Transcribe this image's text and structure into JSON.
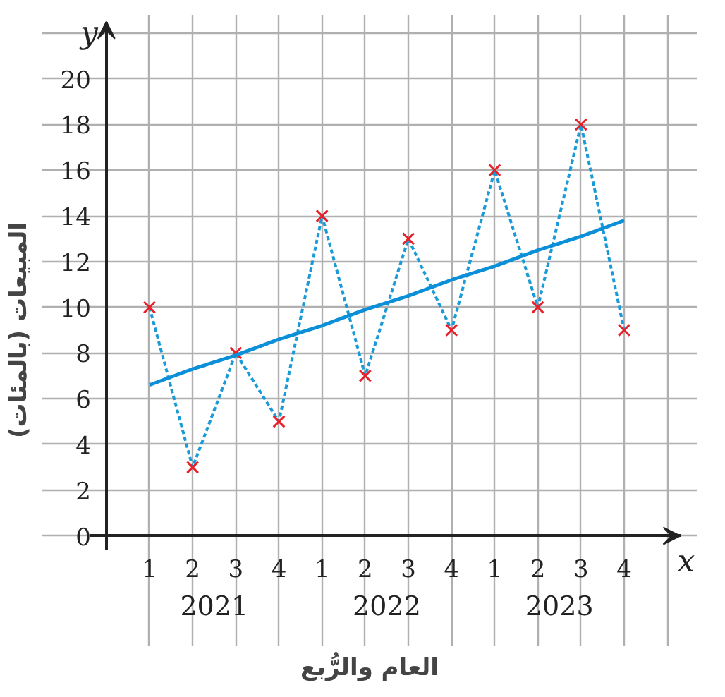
{
  "chart_data": {
    "type": "line",
    "xlabel": "العام والرُّبع",
    "ylabel": "المبيعات (بالمئات)",
    "categories": [
      "1",
      "2",
      "3",
      "4",
      "1",
      "2",
      "3",
      "4",
      "1",
      "2",
      "3",
      "4"
    ],
    "series": [
      {
        "color": "#1a9ad6",
        "line_style": "dotted",
        "marker": "none",
        "values": [
          10,
          3,
          8,
          5,
          14,
          7,
          13,
          9,
          16,
          10,
          18,
          9
        ]
      },
      {
        "type": "scatter",
        "color": "#e8202a",
        "marker": "cross",
        "values": [
          10,
          3,
          8,
          5,
          14,
          7,
          13,
          9,
          16,
          10,
          18,
          9
        ]
      },
      {
        "color": "#0a8fd8",
        "line_style": "solid",
        "marker": "none",
        "values": [
          6.6,
          7.3,
          7.9,
          8.6,
          9.2,
          9.9,
          10.5,
          11.2,
          11.8,
          12.5,
          13.1,
          13.8
        ]
      }
    ],
    "ylim": [
      0,
      22.5
    ],
    "yticks": [
      {
        "value": 0,
        "label": "0"
      },
      2,
      4,
      6,
      8,
      10,
      12,
      14,
      16,
      18,
      20,
      {
        "value": 22,
        "label": null
      }
    ],
    "grid": true,
    "annotations": [
      "2021",
      "2022",
      "2023",
      "x",
      "y"
    ]
  }
}
